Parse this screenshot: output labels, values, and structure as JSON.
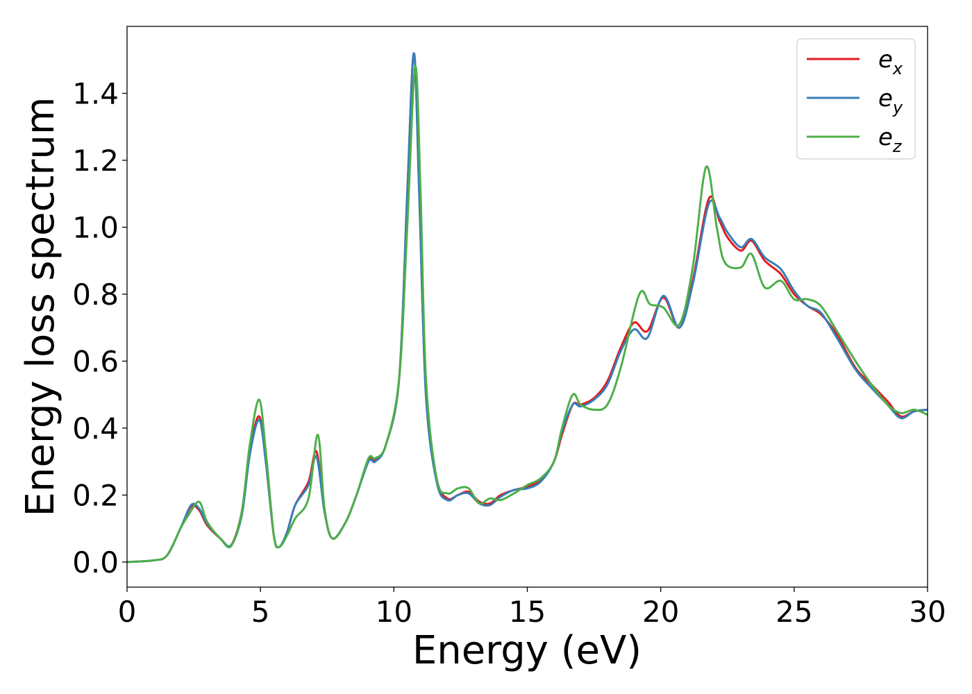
{
  "chart_data": {
    "type": "line",
    "title": "",
    "xlabel": "Energy (eV)",
    "ylabel": "Energy loss spectrum",
    "xlim": [
      0,
      30
    ],
    "ylim": [
      -0.075,
      1.6
    ],
    "xticks": [
      0,
      5,
      10,
      15,
      20,
      25,
      30
    ],
    "xtick_labels": [
      "0",
      "5",
      "10",
      "15",
      "20",
      "25",
      "30"
    ],
    "yticks": [
      0.0,
      0.2,
      0.4,
      0.6,
      0.8,
      1.0,
      1.2,
      1.4
    ],
    "ytick_labels": [
      "0.0",
      "0.2",
      "0.4",
      "0.6",
      "0.8",
      "1.0",
      "1.2",
      "1.4"
    ],
    "grid": false,
    "legend_position": "top-right",
    "series": [
      {
        "name": "e_x",
        "label_base": "e",
        "label_sub": "x",
        "color": "#e41a1c",
        "points": [
          [
            0,
            0
          ],
          [
            1,
            0.005
          ],
          [
            1.5,
            0.02
          ],
          [
            2,
            0.1
          ],
          [
            2.4,
            0.165
          ],
          [
            2.7,
            0.155
          ],
          [
            3,
            0.11
          ],
          [
            3.5,
            0.07
          ],
          [
            3.9,
            0.05
          ],
          [
            4.3,
            0.15
          ],
          [
            4.6,
            0.33
          ],
          [
            4.95,
            0.435
          ],
          [
            5.2,
            0.3
          ],
          [
            5.5,
            0.08
          ],
          [
            5.7,
            0.045
          ],
          [
            6,
            0.09
          ],
          [
            6.3,
            0.17
          ],
          [
            6.8,
            0.24
          ],
          [
            7.1,
            0.33
          ],
          [
            7.4,
            0.15
          ],
          [
            7.7,
            0.07
          ],
          [
            8.2,
            0.12
          ],
          [
            8.6,
            0.2
          ],
          [
            9.05,
            0.305
          ],
          [
            9.3,
            0.305
          ],
          [
            9.7,
            0.35
          ],
          [
            10.2,
            0.55
          ],
          [
            10.5,
            1.1
          ],
          [
            10.75,
            1.52
          ],
          [
            10.95,
            1.1
          ],
          [
            11.2,
            0.5
          ],
          [
            11.6,
            0.25
          ],
          [
            12,
            0.19
          ],
          [
            12.4,
            0.2
          ],
          [
            12.8,
            0.21
          ],
          [
            13.2,
            0.18
          ],
          [
            13.6,
            0.175
          ],
          [
            14,
            0.2
          ],
          [
            14.5,
            0.215
          ],
          [
            15,
            0.225
          ],
          [
            15.5,
            0.245
          ],
          [
            16,
            0.3
          ],
          [
            16.3,
            0.38
          ],
          [
            16.7,
            0.47
          ],
          [
            17,
            0.47
          ],
          [
            17.5,
            0.49
          ],
          [
            18,
            0.54
          ],
          [
            18.5,
            0.64
          ],
          [
            19,
            0.715
          ],
          [
            19.5,
            0.69
          ],
          [
            20.1,
            0.79
          ],
          [
            20.7,
            0.7
          ],
          [
            21.2,
            0.84
          ],
          [
            21.8,
            1.085
          ],
          [
            22.2,
            1.02
          ],
          [
            22.5,
            0.97
          ],
          [
            23,
            0.93
          ],
          [
            23.4,
            0.96
          ],
          [
            23.9,
            0.9
          ],
          [
            24.5,
            0.86
          ],
          [
            25,
            0.8
          ],
          [
            25.5,
            0.765
          ],
          [
            26,
            0.74
          ],
          [
            26.6,
            0.68
          ],
          [
            27.3,
            0.58
          ],
          [
            27.9,
            0.53
          ],
          [
            28.5,
            0.48
          ],
          [
            29,
            0.435
          ],
          [
            29.5,
            0.45
          ],
          [
            30,
            0.455
          ]
        ]
      },
      {
        "name": "e_y",
        "label_base": "e",
        "label_sub": "y",
        "color": "#377eb8",
        "points": [
          [
            0,
            0
          ],
          [
            1,
            0.005
          ],
          [
            1.5,
            0.02
          ],
          [
            2,
            0.1
          ],
          [
            2.4,
            0.17
          ],
          [
            2.7,
            0.16
          ],
          [
            3,
            0.115
          ],
          [
            3.5,
            0.07
          ],
          [
            3.9,
            0.05
          ],
          [
            4.3,
            0.14
          ],
          [
            4.6,
            0.32
          ],
          [
            4.95,
            0.425
          ],
          [
            5.2,
            0.3
          ],
          [
            5.5,
            0.08
          ],
          [
            5.7,
            0.045
          ],
          [
            6,
            0.09
          ],
          [
            6.3,
            0.17
          ],
          [
            6.8,
            0.23
          ],
          [
            7.1,
            0.315
          ],
          [
            7.4,
            0.15
          ],
          [
            7.7,
            0.07
          ],
          [
            8.2,
            0.12
          ],
          [
            8.6,
            0.2
          ],
          [
            9.05,
            0.3
          ],
          [
            9.3,
            0.3
          ],
          [
            9.7,
            0.35
          ],
          [
            10.2,
            0.55
          ],
          [
            10.5,
            1.1
          ],
          [
            10.75,
            1.52
          ],
          [
            10.95,
            1.1
          ],
          [
            11.2,
            0.5
          ],
          [
            11.6,
            0.24
          ],
          [
            12,
            0.185
          ],
          [
            12.4,
            0.2
          ],
          [
            12.8,
            0.205
          ],
          [
            13.2,
            0.175
          ],
          [
            13.6,
            0.17
          ],
          [
            14,
            0.195
          ],
          [
            14.5,
            0.215
          ],
          [
            15,
            0.22
          ],
          [
            15.5,
            0.24
          ],
          [
            16,
            0.3
          ],
          [
            16.3,
            0.39
          ],
          [
            16.7,
            0.47
          ],
          [
            17,
            0.465
          ],
          [
            17.5,
            0.485
          ],
          [
            18,
            0.53
          ],
          [
            18.5,
            0.63
          ],
          [
            19,
            0.695
          ],
          [
            19.5,
            0.67
          ],
          [
            20.1,
            0.795
          ],
          [
            20.7,
            0.7
          ],
          [
            21.2,
            0.83
          ],
          [
            21.8,
            1.07
          ],
          [
            22.2,
            1.03
          ],
          [
            22.5,
            0.985
          ],
          [
            23,
            0.94
          ],
          [
            23.4,
            0.965
          ],
          [
            23.9,
            0.91
          ],
          [
            24.5,
            0.875
          ],
          [
            25,
            0.81
          ],
          [
            25.5,
            0.765
          ],
          [
            26,
            0.745
          ],
          [
            26.6,
            0.67
          ],
          [
            27.3,
            0.575
          ],
          [
            27.9,
            0.52
          ],
          [
            28.5,
            0.47
          ],
          [
            29,
            0.43
          ],
          [
            29.5,
            0.45
          ],
          [
            30,
            0.455
          ]
        ]
      },
      {
        "name": "e_z",
        "label_base": "e",
        "label_sub": "z",
        "color": "#4daf4a",
        "points": [
          [
            0,
            0
          ],
          [
            1,
            0.005
          ],
          [
            1.5,
            0.02
          ],
          [
            2,
            0.1
          ],
          [
            2.3,
            0.14
          ],
          [
            2.7,
            0.18
          ],
          [
            3,
            0.12
          ],
          [
            3.5,
            0.07
          ],
          [
            3.9,
            0.048
          ],
          [
            4.3,
            0.15
          ],
          [
            4.6,
            0.35
          ],
          [
            4.95,
            0.485
          ],
          [
            5.2,
            0.33
          ],
          [
            5.5,
            0.08
          ],
          [
            5.7,
            0.045
          ],
          [
            6,
            0.08
          ],
          [
            6.3,
            0.13
          ],
          [
            6.8,
            0.19
          ],
          [
            7.15,
            0.38
          ],
          [
            7.4,
            0.16
          ],
          [
            7.7,
            0.07
          ],
          [
            8.2,
            0.12
          ],
          [
            8.6,
            0.2
          ],
          [
            9.05,
            0.31
          ],
          [
            9.3,
            0.31
          ],
          [
            9.7,
            0.35
          ],
          [
            10.2,
            0.55
          ],
          [
            10.5,
            1.0
          ],
          [
            10.8,
            1.48
          ],
          [
            11,
            1.1
          ],
          [
            11.2,
            0.55
          ],
          [
            11.6,
            0.25
          ],
          [
            12,
            0.205
          ],
          [
            12.4,
            0.22
          ],
          [
            12.8,
            0.22
          ],
          [
            13.2,
            0.175
          ],
          [
            13.6,
            0.19
          ],
          [
            14,
            0.185
          ],
          [
            14.5,
            0.205
          ],
          [
            15,
            0.23
          ],
          [
            15.5,
            0.25
          ],
          [
            16,
            0.3
          ],
          [
            16.3,
            0.4
          ],
          [
            16.7,
            0.5
          ],
          [
            17,
            0.47
          ],
          [
            17.5,
            0.455
          ],
          [
            18,
            0.47
          ],
          [
            18.5,
            0.58
          ],
          [
            19.2,
            0.8
          ],
          [
            19.6,
            0.77
          ],
          [
            20.1,
            0.76
          ],
          [
            20.7,
            0.71
          ],
          [
            21.2,
            0.88
          ],
          [
            21.7,
            1.18
          ],
          [
            22.1,
            1.0
          ],
          [
            22.4,
            0.895
          ],
          [
            23,
            0.88
          ],
          [
            23.4,
            0.92
          ],
          [
            23.9,
            0.82
          ],
          [
            24.5,
            0.84
          ],
          [
            25,
            0.785
          ],
          [
            25.5,
            0.785
          ],
          [
            26,
            0.765
          ],
          [
            26.6,
            0.69
          ],
          [
            27.3,
            0.6
          ],
          [
            27.9,
            0.53
          ],
          [
            28.5,
            0.47
          ],
          [
            29,
            0.445
          ],
          [
            29.5,
            0.455
          ],
          [
            30,
            0.44
          ]
        ]
      }
    ]
  }
}
